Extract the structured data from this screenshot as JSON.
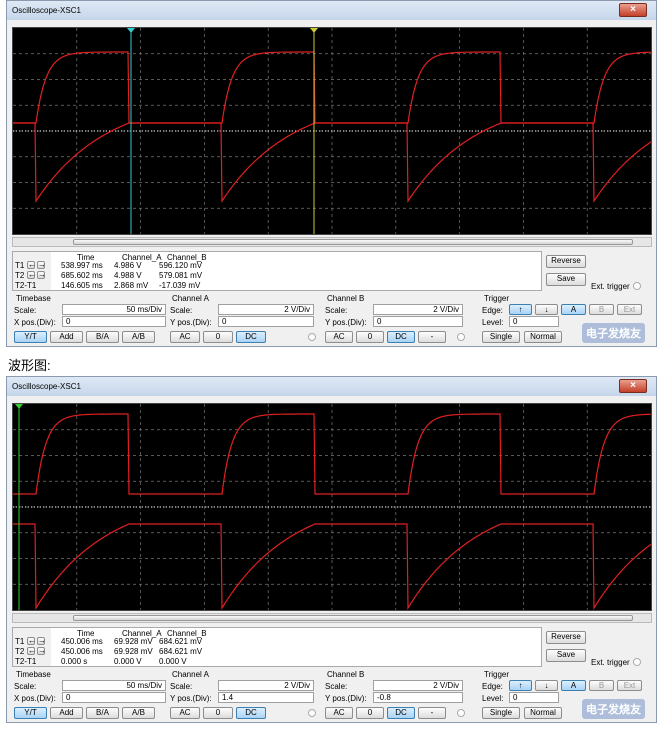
{
  "windows": [
    {
      "title": "Oscilloscope-XSC1",
      "readout": {
        "headers": [
          "Time",
          "Channel_A",
          "Channel_B"
        ],
        "rows": [
          {
            "label": "T1",
            "values": [
              "538.997 ms",
              "4.986 V",
              "596.120 mV"
            ]
          },
          {
            "label": "T2",
            "values": [
              "685.602 ms",
              "4.988 V",
              "579.081 mV"
            ]
          },
          {
            "label": "T2-T1",
            "values": [
              "146.605 ms",
              "2.868 mV",
              "-17.039 mV"
            ]
          }
        ]
      },
      "reverse": "Reverse",
      "save": "Save",
      "ext_trigger": "Ext. trigger",
      "timebase": {
        "title": "Timebase",
        "scale_label": "Scale:",
        "scale": "50 ms/Div",
        "pos_label": "X pos.(Div):",
        "pos": "0",
        "modes": [
          "Y/T",
          "Add",
          "B/A",
          "A/B"
        ]
      },
      "channel_a": {
        "title": "Channel A",
        "scale_label": "Scale:",
        "scale": "2 V/Div",
        "pos_label": "Y pos.(Div):",
        "pos": "0",
        "coupling": [
          "AC",
          "0",
          "DC"
        ]
      },
      "channel_b": {
        "title": "Channel B",
        "scale_label": "Scale:",
        "scale": "2 V/Div",
        "pos_label": "Y pos.(Div):",
        "pos": "0",
        "coupling": [
          "AC",
          "0",
          "DC",
          "-"
        ]
      },
      "trigger": {
        "title": "Trigger",
        "edge_label": "Edge:",
        "sources": [
          "A",
          "B",
          "Ext"
        ],
        "level_label": "Level:",
        "level": "0",
        "modes": [
          "Single",
          "Normal"
        ]
      }
    },
    {
      "title": "Oscilloscope-XSC1",
      "readout": {
        "headers": [
          "Time",
          "Channel_A",
          "Channel_B"
        ],
        "rows": [
          {
            "label": "T1",
            "values": [
              "450.006 ms",
              "69.928 mV",
              "684.621 mV"
            ]
          },
          {
            "label": "T2",
            "values": [
              "450.006 ms",
              "69.928 mV",
              "684.621 mV"
            ]
          },
          {
            "label": "T2-T1",
            "values": [
              "0.000 s",
              "0.000 V",
              "0.000 V"
            ]
          }
        ]
      },
      "reverse": "Reverse",
      "save": "Save",
      "ext_trigger": "Ext. trigger",
      "timebase": {
        "title": "Timebase",
        "scale_label": "Scale:",
        "scale": "50 ms/Div",
        "pos_label": "X pos.(Div):",
        "pos": "0",
        "modes": [
          "Y/T",
          "Add",
          "B/A",
          "A/B"
        ]
      },
      "channel_a": {
        "title": "Channel A",
        "scale_label": "Scale:",
        "scale": "2 V/Div",
        "pos_label": "Y pos.(Div):",
        "pos": "1.4",
        "coupling": [
          "AC",
          "0",
          "DC"
        ]
      },
      "channel_b": {
        "title": "Channel B",
        "scale_label": "Scale:",
        "scale": "2 V/Div",
        "pos_label": "Y pos.(Div):",
        "pos": "-0.8",
        "coupling": [
          "AC",
          "0",
          "DC",
          "-"
        ]
      },
      "trigger": {
        "title": "Trigger",
        "edge_label": "Edge:",
        "sources": [
          "A",
          "B",
          "Ext"
        ],
        "level_label": "Level:",
        "level": "0",
        "modes": [
          "Single",
          "Normal"
        ]
      }
    }
  ],
  "caption": "波形图:",
  "watermark": "电子发烧友"
}
